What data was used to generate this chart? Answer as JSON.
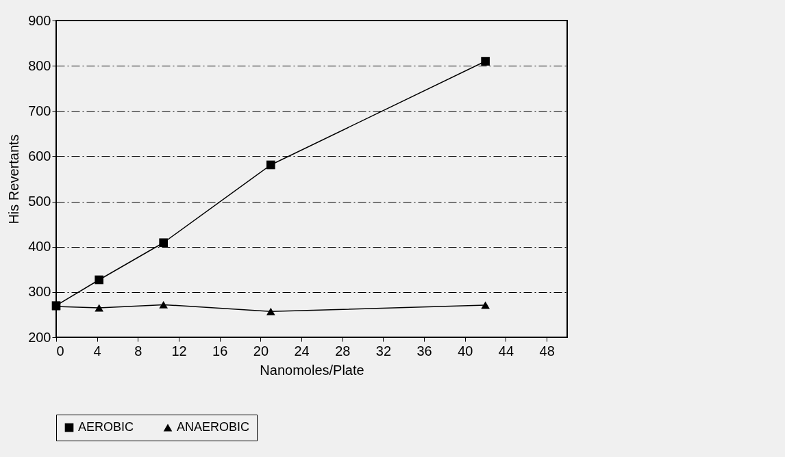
{
  "chart_data": {
    "type": "line",
    "xlabel": "Nanomoles/Plate",
    "ylabel": "His Revertants",
    "xlim": [
      0,
      50
    ],
    "xticks": [
      0,
      4,
      8,
      12,
      16,
      20,
      24,
      28,
      32,
      36,
      40,
      44,
      48
    ],
    "ylim": [
      200,
      900
    ],
    "yticks": [
      200,
      300,
      400,
      500,
      600,
      700,
      800,
      900
    ],
    "x": [
      0,
      4.2,
      10.5,
      21,
      42
    ],
    "series": [
      {
        "name": "AEROBIC",
        "color": "#000000",
        "marker": "square",
        "values": [
          270,
          327,
          409,
          581,
          810
        ]
      },
      {
        "name": "ANAEROBIC",
        "color": "#000000",
        "marker": "triangle",
        "values": [
          268,
          265,
          272,
          257,
          271
        ]
      }
    ],
    "grid": "y",
    "legend": "bottom",
    "line_style": "solid"
  }
}
